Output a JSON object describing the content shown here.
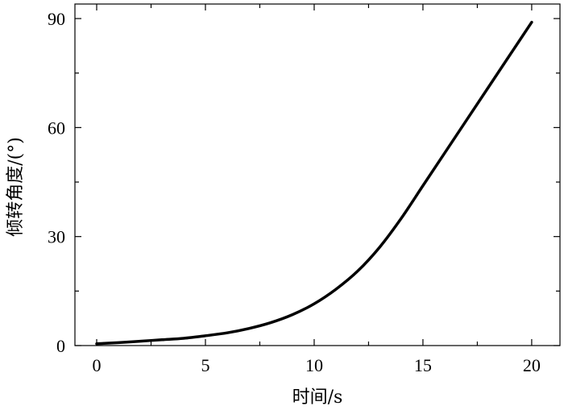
{
  "chart_data": {
    "type": "line",
    "title": "",
    "xlabel": "时间/s",
    "ylabel": "倾转角度/(°)",
    "xlim": [
      -1,
      21.3
    ],
    "ylim": [
      0,
      94
    ],
    "grid": false,
    "legend": "none",
    "x_ticks": [
      0,
      5,
      10,
      15,
      20
    ],
    "x_tick_labels": [
      "0",
      "5",
      "10",
      "15",
      "20"
    ],
    "y_ticks": [
      0,
      30,
      60,
      90
    ],
    "y_tick_labels": [
      "0",
      "30",
      "60",
      "90"
    ],
    "series": [
      {
        "color": "#000000",
        "x": [
          0,
          1,
          2,
          3,
          4,
          5,
          6,
          7,
          8,
          9,
          10,
          11,
          12,
          13,
          14,
          15,
          16,
          17,
          18,
          19,
          20
        ],
        "y": [
          0.5,
          0.8,
          1.2,
          1.6,
          2.0,
          2.7,
          3.5,
          4.7,
          6.3,
          8.5,
          11.5,
          15.5,
          20.5,
          27.0,
          35.0,
          44.0,
          53.0,
          62.0,
          71.0,
          80.0,
          89.0
        ]
      }
    ]
  }
}
